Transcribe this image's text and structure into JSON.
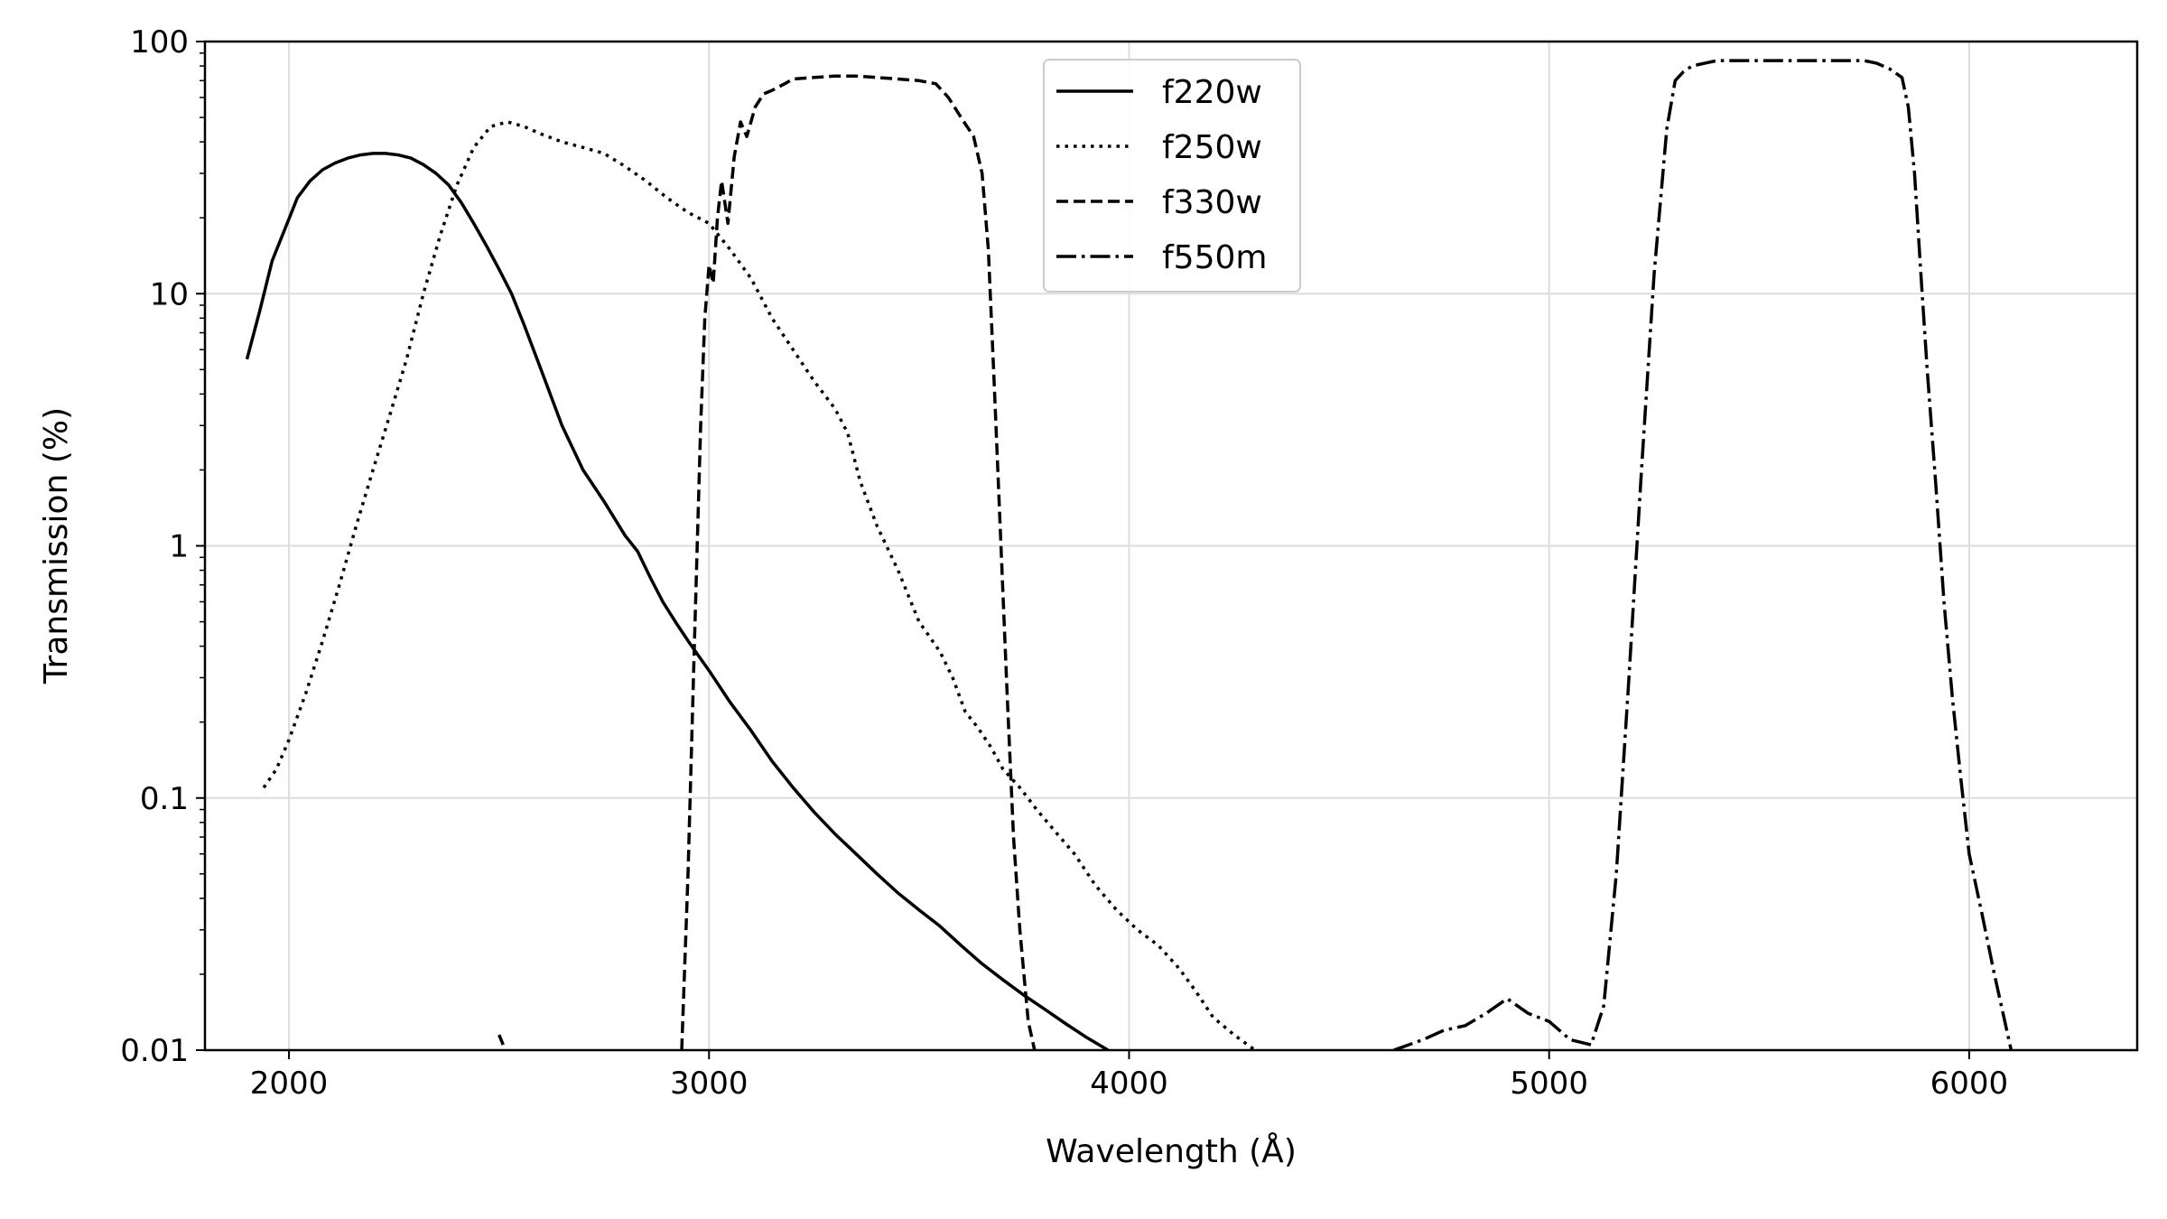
{
  "chart_data": {
    "type": "line",
    "title": "",
    "xlabel": "Wavelength (Å)",
    "ylabel": "Transmission (%)",
    "xlim": [
      1800,
      6400
    ],
    "ylim": [
      0.01,
      100
    ],
    "yscale": "log",
    "grid": true,
    "legend_position": "top-center",
    "x_ticks": [
      2000,
      3000,
      4000,
      5000,
      6000
    ],
    "x_tick_labels": [
      "2000",
      "3000",
      "4000",
      "5000",
      "6000"
    ],
    "y_ticks": [
      0.01,
      0.1,
      1,
      10,
      100
    ],
    "y_tick_labels": [
      "0.01",
      "0.1",
      "1",
      "10",
      "100"
    ],
    "series": [
      {
        "name": "f220w",
        "style": "solid",
        "color": "#000000",
        "x": [
          1900,
          1930,
          1960,
          1990,
          2020,
          2050,
          2080,
          2110,
          2140,
          2170,
          2200,
          2230,
          2260,
          2290,
          2320,
          2350,
          2380,
          2410,
          2440,
          2470,
          2500,
          2530,
          2560,
          2600,
          2650,
          2700,
          2750,
          2800,
          2830,
          2860,
          2890,
          2920,
          2950,
          3000,
          3050,
          3100,
          3150,
          3200,
          3250,
          3300,
          3350,
          3400,
          3450,
          3500,
          3550,
          3600,
          3650,
          3700,
          3750,
          3800,
          3850,
          3900,
          3950
        ],
        "values": [
          5.5,
          8.5,
          13.5,
          18,
          24,
          28,
          31,
          33,
          34.5,
          35.5,
          36,
          36,
          35.5,
          34.5,
          32.5,
          30,
          27,
          23,
          19,
          15.5,
          12.5,
          10,
          7.5,
          5,
          3,
          2,
          1.5,
          1.1,
          0.95,
          0.75,
          0.6,
          0.5,
          0.42,
          0.32,
          0.24,
          0.185,
          0.14,
          0.11,
          0.088,
          0.072,
          0.06,
          0.05,
          0.042,
          0.036,
          0.031,
          0.026,
          0.022,
          0.019,
          0.0165,
          0.0145,
          0.0127,
          0.0112,
          0.01
        ]
      },
      {
        "name": "f250w",
        "style": "dotted",
        "color": "#000000",
        "x": [
          1940,
          1970,
          2000,
          2040,
          2080,
          2120,
          2160,
          2200,
          2240,
          2280,
          2320,
          2360,
          2400,
          2440,
          2480,
          2520,
          2560,
          2600,
          2650,
          2700,
          2750,
          2800,
          2850,
          2900,
          2950,
          3000,
          3050,
          3100,
          3150,
          3200,
          3250,
          3300,
          3330,
          3360,
          3400,
          3450,
          3500,
          3550,
          3580,
          3610,
          3640,
          3670,
          3700,
          3740,
          3780,
          3820,
          3870,
          3920,
          3970,
          4020,
          4070,
          4120,
          4160,
          4200,
          4250,
          4300
        ],
        "values": [
          0.11,
          0.13,
          0.17,
          0.26,
          0.42,
          0.7,
          1.2,
          2.0,
          3.3,
          5.5,
          10,
          17,
          27,
          38,
          46,
          48,
          46,
          43,
          40,
          38,
          36,
          32,
          28,
          24,
          21,
          19,
          15,
          11.5,
          8,
          6,
          4.5,
          3.5,
          2.8,
          1.8,
          1.2,
          0.8,
          0.5,
          0.38,
          0.3,
          0.22,
          0.19,
          0.16,
          0.13,
          0.11,
          0.09,
          0.075,
          0.06,
          0.045,
          0.036,
          0.03,
          0.026,
          0.021,
          0.017,
          0.0135,
          0.0115,
          0.01
        ]
      },
      {
        "name": "f330w",
        "style": "dashed",
        "color": "#000000",
        "x": [
          2935,
          2950,
          2965,
          2980,
          2990,
          3000,
          3010,
          3020,
          3030,
          3045,
          3060,
          3075,
          3090,
          3110,
          3130,
          3150,
          3180,
          3200,
          3250,
          3300,
          3350,
          3400,
          3450,
          3500,
          3540,
          3570,
          3600,
          3630,
          3650,
          3665,
          3680,
          3695,
          3710,
          3725,
          3740,
          3760,
          3775
        ],
        "values": [
          0.01,
          0.05,
          0.4,
          3,
          8,
          13,
          11,
          20,
          28,
          19,
          35,
          48,
          42,
          55,
          62,
          64,
          68,
          71,
          72,
          73,
          73,
          72,
          71,
          70,
          68,
          60,
          50,
          42,
          30,
          15,
          4,
          1,
          0.25,
          0.07,
          0.03,
          0.013,
          0.01
        ]
      },
      {
        "name": "f550m",
        "style": "dashdot",
        "color": "#000000",
        "x": [
          4630,
          4700,
          4750,
          4800,
          4850,
          4900,
          4950,
          5000,
          5050,
          5100,
          5130,
          5160,
          5190,
          5220,
          5250,
          5280,
          5300,
          5320,
          5340,
          5370,
          5400,
          5450,
          5500,
          5550,
          5600,
          5650,
          5700,
          5750,
          5780,
          5810,
          5840,
          5855,
          5870,
          5885,
          5900,
          5920,
          5940,
          5960,
          5980,
          6000,
          6030,
          6060,
          6100
        ],
        "values": [
          0.01,
          0.011,
          0.012,
          0.0125,
          0.014,
          0.016,
          0.014,
          0.013,
          0.011,
          0.0105,
          0.015,
          0.05,
          0.3,
          2,
          12,
          45,
          70,
          76,
          80,
          82,
          84,
          84,
          84,
          84,
          84,
          84,
          84,
          84,
          82,
          78,
          72,
          55,
          30,
          12,
          5,
          1.8,
          0.6,
          0.25,
          0.12,
          0.06,
          0.035,
          0.02,
          0.01
        ]
      },
      {
        "name": "",
        "style": "solid",
        "color": "#000000",
        "x": [
          2500,
          2510
        ],
        "values": [
          0.0115,
          0.0105
        ]
      }
    ]
  }
}
